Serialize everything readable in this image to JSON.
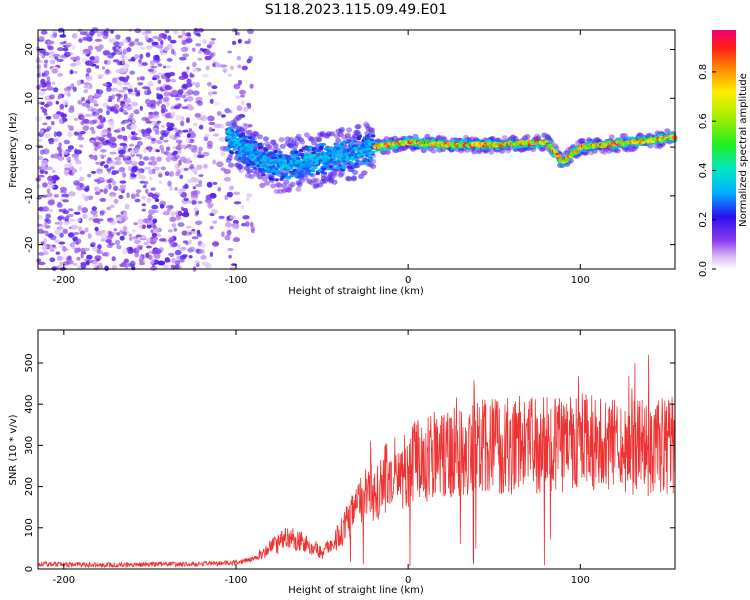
{
  "title": "S118.2023.115.09.49.E01",
  "chart_data": [
    {
      "type": "heatmap",
      "xlabel": "Height of straight line (km)",
      "ylabel": "Frequency (Hz)",
      "xlim": [
        -215,
        155
      ],
      "ylim": [
        -25,
        24
      ],
      "xticks": [
        -200,
        -100,
        0,
        100
      ],
      "yticks": [
        -20,
        -10,
        0,
        10,
        20
      ],
      "colorbar": {
        "label": "Normalized spectral amplitude",
        "range": [
          0.0,
          0.97
        ],
        "ticks": [
          0.0,
          0.2,
          0.4,
          0.6,
          0.8
        ]
      },
      "ridge": [
        {
          "x": -100,
          "y": 1
        },
        {
          "x": -80,
          "y": -4
        },
        {
          "x": -60,
          "y": -3
        },
        {
          "x": -40,
          "y": -2
        },
        {
          "x": -20,
          "y": 0
        },
        {
          "x": 0,
          "y": 1
        },
        {
          "x": 20,
          "y": 0.5
        },
        {
          "x": 50,
          "y": 0.5
        },
        {
          "x": 80,
          "y": 1
        },
        {
          "x": 90,
          "y": -3
        },
        {
          "x": 100,
          "y": 0
        },
        {
          "x": 130,
          "y": 1
        },
        {
          "x": 155,
          "y": 2
        }
      ]
    },
    {
      "type": "line",
      "xlabel": "Height of straight line (km)",
      "ylabel": "SNR (10 * v/v)",
      "xlim": [
        -215,
        155
      ],
      "ylim": [
        0,
        580
      ],
      "xticks": [
        -200,
        -100,
        0,
        100
      ],
      "yticks": [
        0,
        100,
        200,
        300,
        400,
        500
      ],
      "color": "#ee3333",
      "series": [
        {
          "x": [
            -215,
            -180,
            -150,
            -120,
            -100,
            -90,
            -80,
            -70,
            -60,
            -50,
            -40,
            -30,
            -20,
            -10,
            0,
            20,
            40,
            60,
            80,
            100,
            120,
            140,
            155
          ],
          "y": [
            12,
            10,
            11,
            12,
            15,
            25,
            50,
            75,
            65,
            40,
            80,
            150,
            190,
            230,
            250,
            280,
            295,
            300,
            300,
            305,
            300,
            295,
            300
          ]
        }
      ]
    }
  ]
}
